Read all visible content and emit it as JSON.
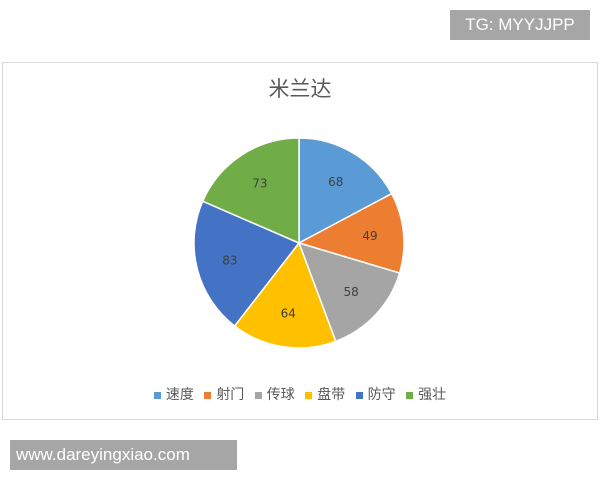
{
  "watermark_top": "TG: MYYJJPP",
  "watermark_bottom": "www.dareyingxiao.com",
  "chart_data": {
    "type": "pie",
    "title": "米兰达",
    "categories": [
      "速度",
      "射门",
      "传球",
      "盘带",
      "防守",
      "强壮"
    ],
    "values": [
      68,
      49,
      58,
      64,
      83,
      73
    ],
    "colors": [
      "#5b9bd5",
      "#ed7d31",
      "#a5a5a5",
      "#ffc000",
      "#4472c4",
      "#70ad47"
    ],
    "start": "top",
    "direction": "clockwise",
    "legend": "bottom",
    "data_labels": true
  }
}
